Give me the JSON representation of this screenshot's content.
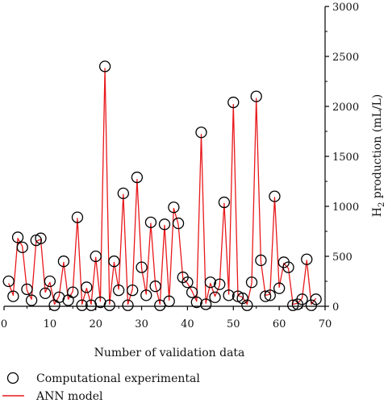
{
  "chart_data": {
    "type": "line",
    "xlabel": "Number of validation data",
    "ylabel": "H2 production (mL/L)",
    "ylabel_parts": [
      "H",
      "2",
      " production (mL/L)"
    ],
    "xlim": [
      0,
      70
    ],
    "ylim": [
      0,
      3000
    ],
    "x_ticks": [
      "0",
      "10",
      "20",
      "30",
      "40",
      "50",
      "60",
      "70"
    ],
    "y_ticks": [
      "0",
      "500",
      "1000",
      "1500",
      "2000",
      "2500",
      "3000"
    ],
    "y_axis_position": "right",
    "grid": false,
    "legend_position": "bottom-left",
    "series": [
      {
        "name": "Computational experimental",
        "marker": "open-circle",
        "color": "#000000",
        "x": [
          1,
          2,
          3,
          4,
          5,
          6,
          7,
          8,
          9,
          10,
          11,
          12,
          13,
          14,
          15,
          16,
          17,
          18,
          19,
          20,
          21,
          22,
          23,
          24,
          25,
          26,
          27,
          28,
          29,
          30,
          31,
          32,
          33,
          34,
          35,
          36,
          37,
          38,
          39,
          40,
          41,
          42,
          43,
          44,
          45,
          46,
          47,
          48,
          49,
          50,
          51,
          52,
          53,
          54,
          55,
          56,
          57,
          58,
          59,
          60,
          61,
          62,
          63,
          64,
          65,
          66,
          67,
          68
        ],
        "values": [
          250,
          100,
          690,
          590,
          170,
          60,
          660,
          680,
          130,
          250,
          10,
          90,
          450,
          60,
          140,
          890,
          10,
          190,
          10,
          500,
          40,
          2400,
          10,
          450,
          160,
          1130,
          10,
          160,
          1290,
          390,
          110,
          840,
          200,
          10,
          820,
          50,
          990,
          830,
          290,
          240,
          140,
          40,
          1740,
          20,
          240,
          90,
          220,
          1040,
          110,
          2040,
          100,
          80,
          10,
          240,
          2100,
          460,
          100,
          110,
          1100,
          180,
          440,
          390,
          10,
          20,
          70,
          470,
          10,
          70
        ]
      },
      {
        "name": "ANN model",
        "marker": "line",
        "color": "#e8191c",
        "x": [
          1,
          2,
          3,
          4,
          5,
          6,
          7,
          8,
          9,
          10,
          11,
          12,
          13,
          14,
          15,
          16,
          17,
          18,
          19,
          20,
          21,
          22,
          23,
          24,
          25,
          26,
          27,
          28,
          29,
          30,
          31,
          32,
          33,
          34,
          35,
          36,
          37,
          38,
          39,
          40,
          41,
          42,
          43,
          44,
          45,
          46,
          47,
          48,
          49,
          50,
          51,
          52,
          53,
          54,
          55,
          56,
          57,
          58,
          59,
          60,
          61,
          62,
          63,
          64,
          65,
          66,
          67,
          68
        ],
        "values": [
          230,
          110,
          680,
          600,
          160,
          70,
          650,
          670,
          140,
          240,
          20,
          100,
          440,
          70,
          150,
          880,
          20,
          180,
          20,
          490,
          50,
          2380,
          20,
          440,
          170,
          1120,
          20,
          170,
          1270,
          380,
          120,
          830,
          210,
          20,
          810,
          60,
          980,
          820,
          280,
          230,
          150,
          50,
          1720,
          30,
          230,
          100,
          210,
          1030,
          120,
          2020,
          110,
          90,
          20,
          230,
          2080,
          450,
          110,
          120,
          1090,
          190,
          430,
          380,
          20,
          30,
          80,
          460,
          20,
          80
        ]
      }
    ]
  }
}
